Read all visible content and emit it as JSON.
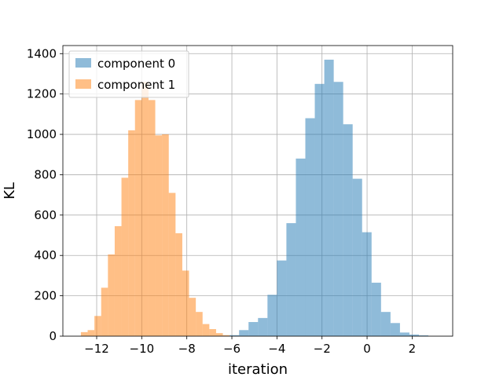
{
  "chart_data": {
    "type": "histogram",
    "title": "",
    "xlabel": "iteration",
    "ylabel": "KL",
    "xlim": [
      -13.5,
      3.8
    ],
    "ylim": [
      0,
      1440
    ],
    "xticks": [
      -12,
      -10,
      -8,
      -6,
      -4,
      -2,
      0,
      2
    ],
    "xtick_labels": [
      "−12",
      "−10",
      "−8",
      "−6",
      "−4",
      "−2",
      "0",
      "2"
    ],
    "yticks": [
      0,
      200,
      400,
      600,
      800,
      1000,
      1200,
      1400
    ],
    "ytick_labels": [
      "0",
      "200",
      "400",
      "600",
      "800",
      "1000",
      "1200",
      "1400"
    ],
    "grid": true,
    "legend_position": "top-left",
    "series": [
      {
        "name": "component 0",
        "color": "#1f77b4",
        "opacity": 0.5,
        "bin_edges": [
          -6.52,
          -6.1,
          -5.68,
          -5.26,
          -4.84,
          -4.42,
          -4.0,
          -3.58,
          -3.16,
          -2.74,
          -2.32,
          -1.9,
          -1.48,
          -1.06,
          -0.64,
          -0.22,
          0.2,
          0.62,
          1.04,
          1.46,
          1.88,
          2.3,
          2.72
        ],
        "counts": [
          2,
          5,
          30,
          70,
          90,
          205,
          375,
          560,
          880,
          1080,
          1250,
          1370,
          1260,
          1050,
          780,
          515,
          265,
          120,
          65,
          18,
          8,
          4
        ]
      },
      {
        "name": "component 1",
        "color": "#ff7f0e",
        "opacity": 0.5,
        "bin_edges": [
          -12.7,
          -12.4,
          -12.1,
          -11.8,
          -11.5,
          -11.2,
          -10.9,
          -10.6,
          -10.3,
          -10.0,
          -9.7,
          -9.4,
          -9.1,
          -8.8,
          -8.5,
          -8.2,
          -7.9,
          -7.6,
          -7.3,
          -7.0,
          -6.7,
          -6.4,
          -6.1
        ],
        "counts": [
          20,
          30,
          100,
          240,
          405,
          545,
          785,
          1020,
          1170,
          1260,
          1170,
          995,
          1000,
          710,
          510,
          325,
          190,
          120,
          60,
          35,
          15,
          5
        ]
      }
    ]
  }
}
